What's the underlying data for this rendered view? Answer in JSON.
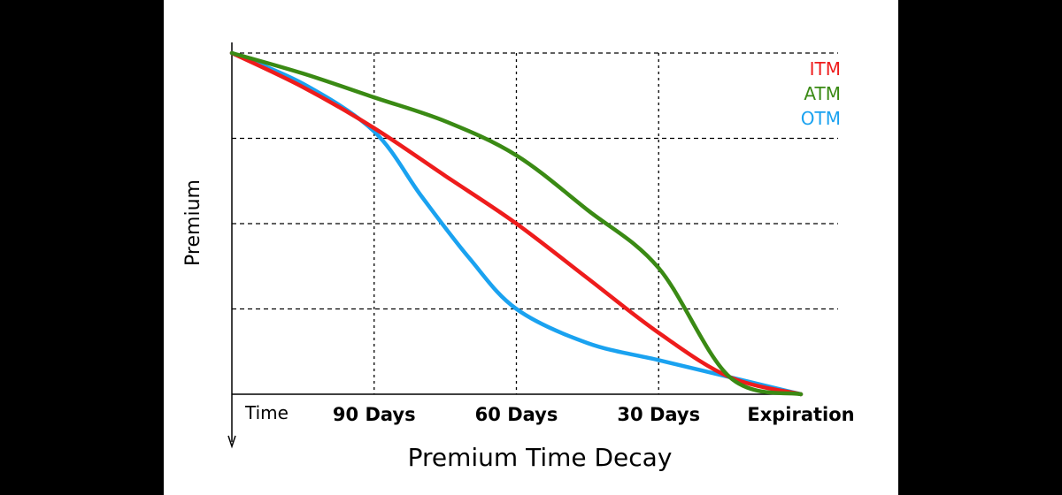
{
  "chart_data": {
    "type": "line",
    "title": "Premium Time Decay",
    "ylabel": "Premium",
    "x_axis_start_label": "Time",
    "categories": [
      "90 Days",
      "60 Days",
      "30 Days",
      "Expiration"
    ],
    "x": [
      120,
      90,
      60,
      30,
      0
    ],
    "ylim": [
      0,
      100
    ],
    "grid": true,
    "legend_position": "top-right",
    "series": [
      {
        "name": "ITM",
        "color": "#ee1c1c",
        "points": [
          [
            120,
            100
          ],
          [
            105,
            90
          ],
          [
            90,
            78
          ],
          [
            75,
            64
          ],
          [
            60,
            50
          ],
          [
            45,
            34
          ],
          [
            30,
            18
          ],
          [
            15,
            5
          ],
          [
            0,
            0
          ]
        ]
      },
      {
        "name": "ATM",
        "color": "#3a8a14",
        "points": [
          [
            120,
            100
          ],
          [
            105,
            94
          ],
          [
            90,
            87
          ],
          [
            75,
            80
          ],
          [
            60,
            70
          ],
          [
            45,
            54
          ],
          [
            30,
            37
          ],
          [
            15,
            5
          ],
          [
            0,
            0
          ]
        ]
      },
      {
        "name": "OTM",
        "color": "#1aa2f0",
        "points": [
          [
            120,
            100
          ],
          [
            105,
            91
          ],
          [
            90,
            77
          ],
          [
            80,
            58
          ],
          [
            70,
            40
          ],
          [
            60,
            25
          ],
          [
            45,
            15
          ],
          [
            30,
            10
          ],
          [
            15,
            5
          ],
          [
            0,
            0
          ]
        ]
      }
    ]
  }
}
